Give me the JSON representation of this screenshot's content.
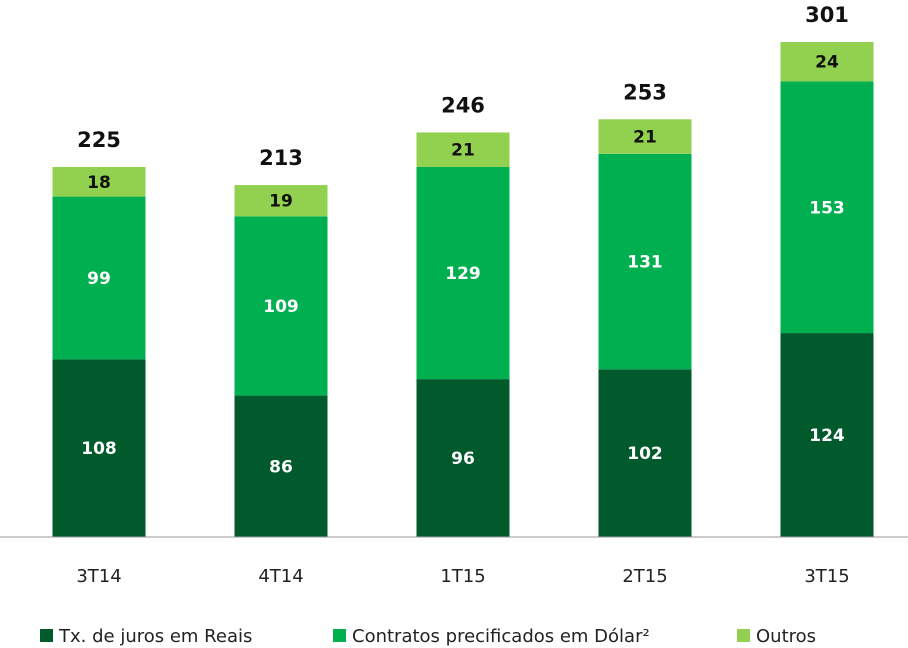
{
  "chart_data": {
    "type": "stacked_bar",
    "categories": [
      "3T14",
      "4T14",
      "1T15",
      "2T15",
      "3T15"
    ],
    "series": [
      {
        "name": "Tx. de juros em Reais",
        "color": "#005a2b",
        "values": [
          108,
          86,
          96,
          102,
          124
        ]
      },
      {
        "name": "Contratos precificados em Dólar²",
        "color": "#00b050",
        "values": [
          99,
          109,
          129,
          131,
          153
        ]
      },
      {
        "name": "Outros",
        "color": "#92d050",
        "values": [
          18,
          19,
          21,
          21,
          24
        ]
      }
    ],
    "totals": [
      225,
      213,
      246,
      253,
      301
    ]
  }
}
